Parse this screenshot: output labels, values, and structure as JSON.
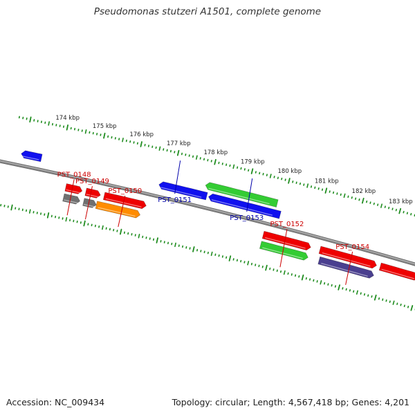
{
  "title": "Pseudomonas stutzeri A1501, complete genome",
  "footer": {
    "accession": "Accession: NC_009434",
    "summary": "Topology: circular; Length: 4,567,418 bp; Genes: 4,201"
  },
  "colors": {
    "backbone": "#8a8a8a",
    "tick_dot": "#1e8c1e",
    "label_forward": "#cc0000",
    "label_reverse": "#0000aa",
    "gene_red": "#ee0000",
    "gene_blue": "#1010ee",
    "gene_green": "#33cc33",
    "gene_gray": "#707070",
    "gene_orange": "#ff8c00",
    "gene_purple": "#4a3f8f"
  },
  "scale": {
    "start_kbp": 173,
    "end_kbp": 184,
    "labeled_ticks": [
      {
        "kbp": 174,
        "label": "174 kbp"
      },
      {
        "kbp": 175,
        "label": "175 kbp"
      },
      {
        "kbp": 176,
        "label": "176 kbp"
      },
      {
        "kbp": 177,
        "label": "177 kbp"
      },
      {
        "kbp": 178,
        "label": "178 kbp"
      },
      {
        "kbp": 179,
        "label": "179 kbp"
      },
      {
        "kbp": 180,
        "label": "180 kbp"
      },
      {
        "kbp": 181,
        "label": "181 kbp"
      },
      {
        "kbp": 182,
        "label": "182 kbp"
      },
      {
        "kbp": 183,
        "label": "183 kbp"
      }
    ]
  },
  "features": [
    {
      "name": "gene-blue-left",
      "start_kbp": 173.0,
      "end_kbp": 173.55,
      "strand": "reverse",
      "lane": 1,
      "color": "gene_blue"
    },
    {
      "name": "gene-gray-1",
      "start_kbp": 174.35,
      "end_kbp": 174.8,
      "strand": "forward",
      "lane": 2,
      "color": "gene_gray"
    },
    {
      "name": "gene-gray-2",
      "start_kbp": 174.9,
      "end_kbp": 175.25,
      "strand": "forward",
      "lane": 2,
      "color": "gene_gray"
    },
    {
      "name": "gene-orange",
      "start_kbp": 175.25,
      "end_kbp": 176.45,
      "strand": "forward",
      "lane": 2,
      "color": "gene_orange"
    },
    {
      "name": "gene-red-148",
      "start_kbp": 174.35,
      "end_kbp": 174.8,
      "strand": "forward",
      "lane": 1,
      "color": "gene_red"
    },
    {
      "name": "gene-red-149",
      "start_kbp": 174.9,
      "end_kbp": 175.3,
      "strand": "forward",
      "lane": 1,
      "color": "gene_red"
    },
    {
      "name": "gene-red-150",
      "start_kbp": 175.4,
      "end_kbp": 176.55,
      "strand": "forward",
      "lane": 1,
      "color": "gene_red"
    },
    {
      "name": "gene-blue-151",
      "start_kbp": 176.75,
      "end_kbp": 178.05,
      "strand": "reverse",
      "lane": 1,
      "color": "gene_blue"
    },
    {
      "name": "gene-blue-153",
      "start_kbp": 178.1,
      "end_kbp": 180.05,
      "strand": "reverse",
      "lane": 1,
      "color": "gene_blue"
    },
    {
      "name": "gene-green-153",
      "start_kbp": 177.95,
      "end_kbp": 179.9,
      "strand": "reverse",
      "lane": 2,
      "color": "gene_green"
    },
    {
      "name": "gene-green-152",
      "start_kbp": 179.75,
      "end_kbp": 181.05,
      "strand": "forward",
      "lane": 2,
      "color": "gene_green"
    },
    {
      "name": "gene-red-152",
      "start_kbp": 179.75,
      "end_kbp": 181.05,
      "strand": "forward",
      "lane": 1,
      "color": "gene_red"
    },
    {
      "name": "gene-purple-154",
      "start_kbp": 181.35,
      "end_kbp": 182.85,
      "strand": "forward",
      "lane": 2,
      "color": "gene_purple"
    },
    {
      "name": "gene-red-154",
      "start_kbp": 181.3,
      "end_kbp": 182.85,
      "strand": "forward",
      "lane": 1,
      "color": "gene_red"
    },
    {
      "name": "gene-red-155",
      "start_kbp": 182.95,
      "end_kbp": 184.0,
      "strand": "forward",
      "lane": 1,
      "color": "gene_red"
    }
  ],
  "labels": [
    {
      "text": "PST_0148",
      "kbp": 174.55,
      "strand": "forward"
    },
    {
      "text": "PST_0149",
      "kbp": 175.05,
      "strand": "forward"
    },
    {
      "text": "PST_0150",
      "kbp": 175.95,
      "strand": "forward"
    },
    {
      "text": "PST_0151",
      "kbp": 177.15,
      "strand": "reverse"
    },
    {
      "text": "PST_0152",
      "kbp": 180.4,
      "strand": "forward"
    },
    {
      "text": "PST_0153",
      "kbp": 179.1,
      "strand": "reverse"
    },
    {
      "text": "PST_0154",
      "kbp": 182.2,
      "strand": "forward"
    }
  ]
}
